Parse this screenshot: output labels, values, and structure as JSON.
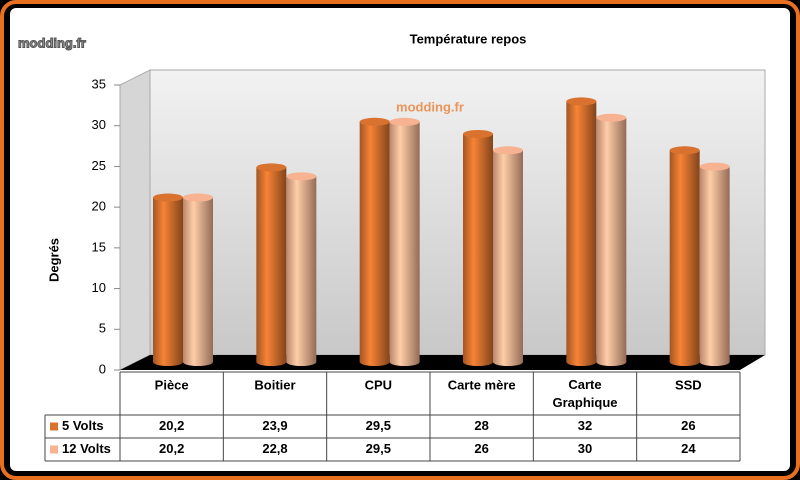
{
  "chart_data": {
    "type": "bar3d",
    "title": "Température repos",
    "watermark": "modding.fr",
    "ylabel": "Degrés",
    "categories": [
      "Pièce",
      "Boitier",
      "CPU",
      "Carte mère",
      "Carte Graphique",
      "SSD"
    ],
    "series": [
      {
        "name": "5 Volts",
        "color": "#d8722e",
        "values": [
          20.2,
          23.9,
          29.5,
          28,
          32,
          26
        ],
        "value_labels": [
          "20,2",
          "23,9",
          "29,5",
          "28",
          "32",
          "26"
        ]
      },
      {
        "name": "12 Volts",
        "color": "#f7b391",
        "values": [
          20.2,
          22.8,
          29.5,
          26,
          30,
          24
        ],
        "value_labels": [
          "20,2",
          "22,8",
          "29,5",
          "26",
          "30",
          "24"
        ]
      }
    ],
    "ylim": [
      0,
      35
    ],
    "yticks": [
      0,
      5,
      10,
      15,
      20,
      25,
      30,
      35
    ],
    "grid": false
  }
}
